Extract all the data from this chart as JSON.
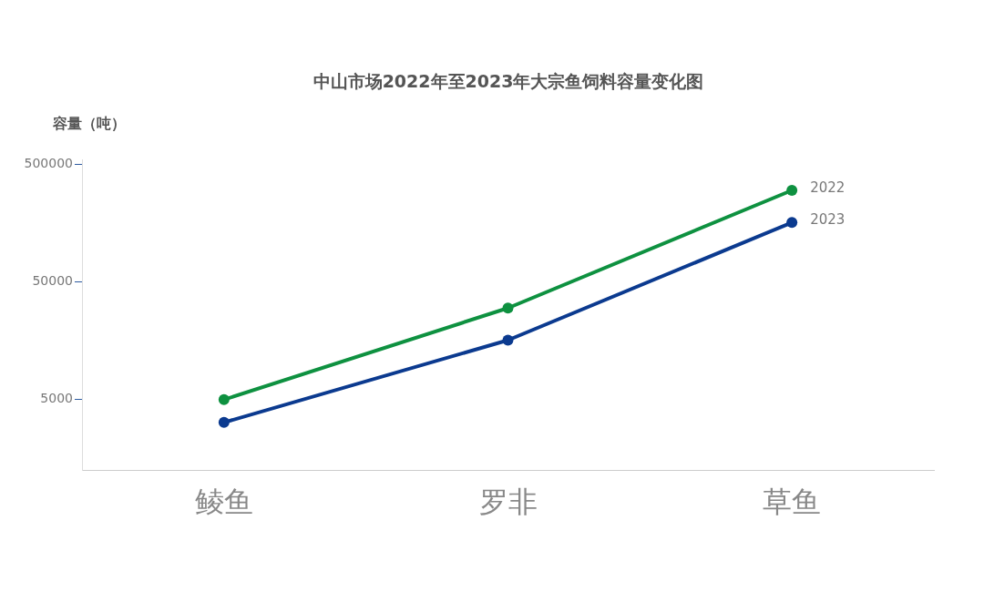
{
  "chart_data": {
    "type": "line",
    "title": "中山市场2022年至2023年大宗鱼饲料容量变化图",
    "ylabel": "容量（吨）",
    "categories": [
      "鲮鱼",
      "罗非",
      "草鱼"
    ],
    "series": [
      {
        "name": "2022",
        "color": "#0e9140",
        "values": [
          5000,
          30000,
          300000
        ]
      },
      {
        "name": "2023",
        "color": "#0b3a8f",
        "values": [
          3200,
          16000,
          160000
        ]
      }
    ],
    "log": "y",
    "ylim": [
      1250,
      550000
    ],
    "yticks": [
      5000,
      50000,
      500000
    ],
    "grid": false,
    "legend": false,
    "marker": "circle",
    "line_style": "solid"
  }
}
